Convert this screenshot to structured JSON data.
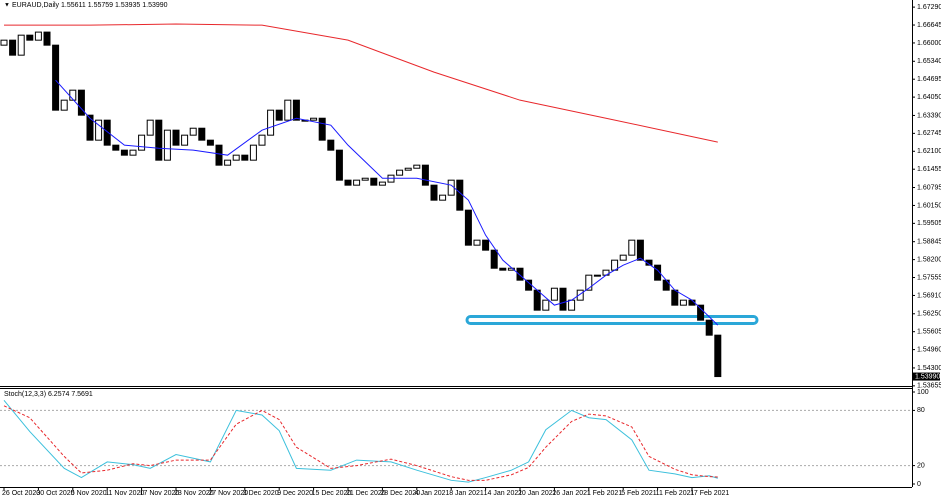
{
  "chart_data": [
    {
      "type": "candlestick",
      "title": "EURAUD,Daily 1.55611 1.55759 1.53935 1.53990",
      "categories": [
        "26 Oct 2020",
        null,
        null,
        null,
        "30 Oct 2020",
        null,
        null,
        null,
        "5 Nov 2020",
        null,
        null,
        null,
        "11 Nov 2020",
        null,
        null,
        null,
        "17 Nov 2020",
        null,
        null,
        null,
        "23 Nov 2020",
        null,
        null,
        null,
        "27 Nov 2020",
        null,
        null,
        null,
        "3 Dec 2020",
        null,
        null,
        null,
        "9 Dec 2020",
        null,
        null,
        null,
        "15 Dec 2020",
        null,
        null,
        null,
        "21 Dec 2020",
        null,
        null,
        null,
        "28 Dec 2020",
        null,
        null,
        null,
        "4 Jan 2021",
        null,
        null,
        null,
        "8 Jan 2021",
        null,
        null,
        null,
        "14 Jan 2021",
        null,
        null,
        null,
        "20 Jan 2021",
        null,
        null,
        null,
        "26 Jan 2021",
        null,
        null,
        null,
        "1 Feb 2021",
        null,
        null,
        null,
        "5 Feb 2021",
        null,
        null,
        null,
        "11 Feb 2021",
        null,
        null,
        null,
        "17 Feb 2021",
        null,
        null,
        null
      ],
      "open": [
        1.6592,
        1.661,
        1.6556,
        1.6628,
        1.661,
        1.6639,
        1.6592,
        1.6358,
        1.6394,
        1.643,
        1.634,
        1.625,
        1.6322,
        1.6232,
        1.6214,
        1.6196,
        1.6214,
        1.6268,
        1.6322,
        1.6178,
        1.6286,
        1.6232,
        1.6268,
        1.6293,
        1.625,
        1.6232,
        1.616,
        1.6178,
        1.6196,
        1.6178,
        1.6232,
        1.6268,
        1.6358,
        1.6322,
        1.6394,
        1.6322,
        1.6322,
        1.6329,
        1.625,
        1.6214,
        1.6106,
        1.6088,
        1.6106,
        1.6113,
        1.6088,
        1.6099,
        1.6124,
        1.6142,
        1.6149,
        1.616,
        1.6088,
        1.6034,
        1.6052,
        1.6106,
        1.5998,
        1.5872,
        1.589,
        1.5854,
        1.5789,
        1.5782,
        1.5789,
        1.5746,
        1.571,
        1.5638,
        1.5674,
        1.5717,
        1.5638,
        1.5674,
        1.571,
        1.5764,
        1.5764,
        1.5782,
        1.5818,
        1.5836,
        1.589,
        1.5818,
        1.58,
        1.5746,
        1.571,
        1.5656,
        1.5674,
        1.5656,
        1.5602,
        1.5548
      ],
      "close": [
        1.661,
        1.6556,
        1.6628,
        1.661,
        1.6639,
        1.6592,
        1.6358,
        1.6394,
        1.643,
        1.634,
        1.625,
        1.6322,
        1.6232,
        1.6214,
        1.6196,
        1.6214,
        1.6268,
        1.6322,
        1.6178,
        1.6286,
        1.6232,
        1.6268,
        1.6293,
        1.625,
        1.6232,
        1.616,
        1.6178,
        1.6196,
        1.6178,
        1.6232,
        1.6268,
        1.6358,
        1.6322,
        1.6394,
        1.6322,
        1.6322,
        1.6329,
        1.625,
        1.6214,
        1.6106,
        1.6088,
        1.6106,
        1.6113,
        1.6088,
        1.6099,
        1.6124,
        1.6142,
        1.6149,
        1.616,
        1.6088,
        1.6034,
        1.6052,
        1.6106,
        1.5998,
        1.5872,
        1.589,
        1.5854,
        1.5789,
        1.5782,
        1.5789,
        1.5746,
        1.571,
        1.5638,
        1.5674,
        1.5717,
        1.5638,
        1.5674,
        1.571,
        1.5764,
        1.5764,
        1.5782,
        1.5818,
        1.5836,
        1.589,
        1.5818,
        1.58,
        1.5746,
        1.571,
        1.5656,
        1.5674,
        1.5656,
        1.5602,
        1.5548,
        1.5399
      ],
      "last_label": "1.53990",
      "up_color": "#ffffff",
      "down_color": "#000000",
      "lines": [
        {
          "color": "#e8282c",
          "x": [
            0,
            10,
            20,
            30,
            40,
            50,
            60,
            70,
            83
          ],
          "values": [
            1.6664,
            1.6664,
            1.6668,
            1.6664,
            1.661,
            1.6495,
            1.6394,
            1.6329,
            1.6243
          ]
        },
        {
          "color": "#1a1aff",
          "x": [
            6,
            10,
            14,
            18,
            22,
            26,
            30,
            34,
            38,
            40,
            44,
            48,
            52,
            54,
            56,
            58,
            62,
            64,
            66,
            68,
            70,
            72,
            74,
            76,
            78,
            80,
            83
          ],
          "values": [
            1.6466,
            1.6329,
            1.6232,
            1.6221,
            1.6214,
            1.6196,
            1.6286,
            1.6329,
            1.6304,
            1.6232,
            1.6113,
            1.6113,
            1.6088,
            1.6034,
            1.5908,
            1.5818,
            1.571,
            1.5656,
            1.5674,
            1.5717,
            1.5764,
            1.58,
            1.5825,
            1.5782,
            1.571,
            1.5674,
            1.5584
          ]
        }
      ],
      "ylim": [
        1.5365,
        1.6751
      ],
      "yticks": [
        {
          "value": 1.6729,
          "label": "1.67290"
        },
        {
          "value": 1.66645,
          "label": "1.66645"
        },
        {
          "value": 1.66,
          "label": "1.66000"
        },
        {
          "value": 1.6534,
          "label": "1.65340"
        },
        {
          "value": 1.64695,
          "label": "1.64695"
        },
        {
          "value": 1.6405,
          "label": "1.64050"
        },
        {
          "value": 1.6339,
          "label": "1.63390"
        },
        {
          "value": 1.62745,
          "label": "1.62745"
        },
        {
          "value": 1.621,
          "label": "1.62100"
        },
        {
          "value": 1.61455,
          "label": "1.61455"
        },
        {
          "value": 1.60795,
          "label": "1.60795"
        },
        {
          "value": 1.6015,
          "label": "1.60150"
        },
        {
          "value": 1.59505,
          "label": "1.59505"
        },
        {
          "value": 1.58845,
          "label": "1.58845"
        },
        {
          "value": 1.582,
          "label": "1.58200"
        },
        {
          "value": 1.57555,
          "label": "1.57555"
        },
        {
          "value": 1.5691,
          "label": "1.56910"
        },
        {
          "value": 1.5625,
          "label": "1.56250"
        },
        {
          "value": 1.55605,
          "label": "1.55605"
        },
        {
          "value": 1.5496,
          "label": "1.54960"
        },
        {
          "value": 1.543,
          "label": "1.54300"
        },
        {
          "value": 1.53655,
          "label": "1.53655"
        }
      ]
    },
    {
      "type": "line",
      "title": "Stoch(12,3,3) 6.2574 7.5691",
      "x": [
        0,
        3,
        7,
        9,
        12,
        15,
        17,
        20,
        24,
        27,
        30,
        32,
        34,
        38,
        41,
        45,
        48,
        52,
        54,
        56,
        59,
        61,
        63,
        66,
        68,
        70,
        73,
        75,
        78,
        80,
        82,
        83
      ],
      "series": [
        {
          "color": "#3cc0dc",
          "values": [
            91,
            57,
            17,
            7,
            24,
            21,
            17,
            32,
            24,
            80,
            75,
            58,
            17,
            15,
            26,
            24,
            15,
            4,
            2,
            7,
            15,
            24,
            59,
            80,
            72,
            70,
            48,
            15,
            11,
            7,
            9,
            6.2574
          ]
        },
        {
          "color": "#e8282c",
          "dash": true,
          "values": [
            85,
            72,
            30,
            12,
            15,
            22,
            20,
            26,
            26,
            65,
            80,
            70,
            40,
            17,
            20,
            27,
            20,
            8,
            4,
            4,
            10,
            18,
            40,
            68,
            76,
            74,
            62,
            30,
            16,
            10,
            8,
            7.5691
          ]
        }
      ],
      "ylim": [
        0,
        100
      ],
      "yticks": [
        100,
        80,
        20,
        0
      ]
    }
  ]
}
